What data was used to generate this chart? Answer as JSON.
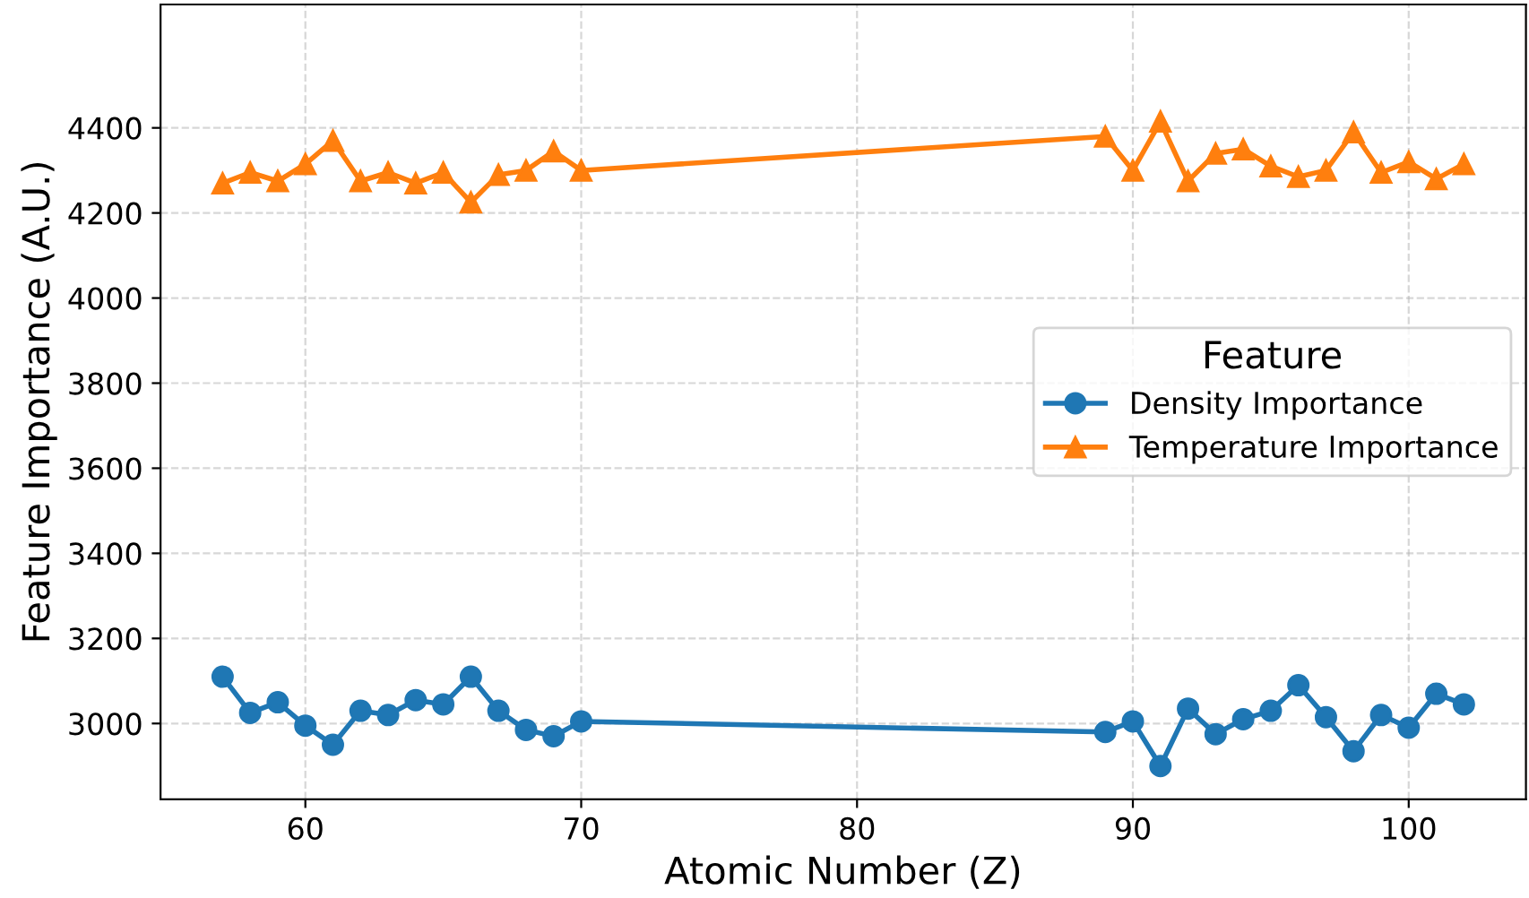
{
  "chart_data": {
    "type": "line",
    "xlabel": "Atomic Number (Z)",
    "ylabel": "Feature Importance (A.U.)",
    "legend_title": "Feature",
    "xlim": [
      54.75,
      104.25
    ],
    "ylim": [
      2822,
      4690
    ],
    "xticks": [
      60,
      70,
      80,
      90,
      100
    ],
    "yticks": [
      3000,
      3200,
      3400,
      3600,
      3800,
      4000,
      4200,
      4400
    ],
    "grid": true,
    "legend": "right",
    "x": [
      57,
      58,
      59,
      60,
      61,
      62,
      63,
      64,
      65,
      66,
      67,
      68,
      69,
      70,
      89,
      90,
      91,
      92,
      93,
      94,
      95,
      96,
      97,
      98,
      99,
      100,
      101,
      102
    ],
    "series": [
      {
        "name": "Density Importance",
        "color": "#1f77b4",
        "marker": "circle",
        "values": [
          3110,
          3025,
          3050,
          2995,
          2950,
          3030,
          3020,
          3055,
          3045,
          3110,
          3030,
          2985,
          2970,
          3005,
          2980,
          3005,
          2900,
          3035,
          2975,
          3010,
          3030,
          3090,
          3015,
          2935,
          3020,
          2990,
          3070,
          3045
        ]
      },
      {
        "name": "Temperature Importance",
        "color": "#ff7f0e",
        "marker": "triangle",
        "values": [
          4270,
          4295,
          4275,
          4315,
          4370,
          4275,
          4295,
          4270,
          4295,
          4225,
          4290,
          4300,
          4345,
          4300,
          4380,
          4300,
          4415,
          4275,
          4340,
          4350,
          4310,
          4285,
          4300,
          4390,
          4295,
          4320,
          4280,
          4315
        ]
      }
    ]
  }
}
